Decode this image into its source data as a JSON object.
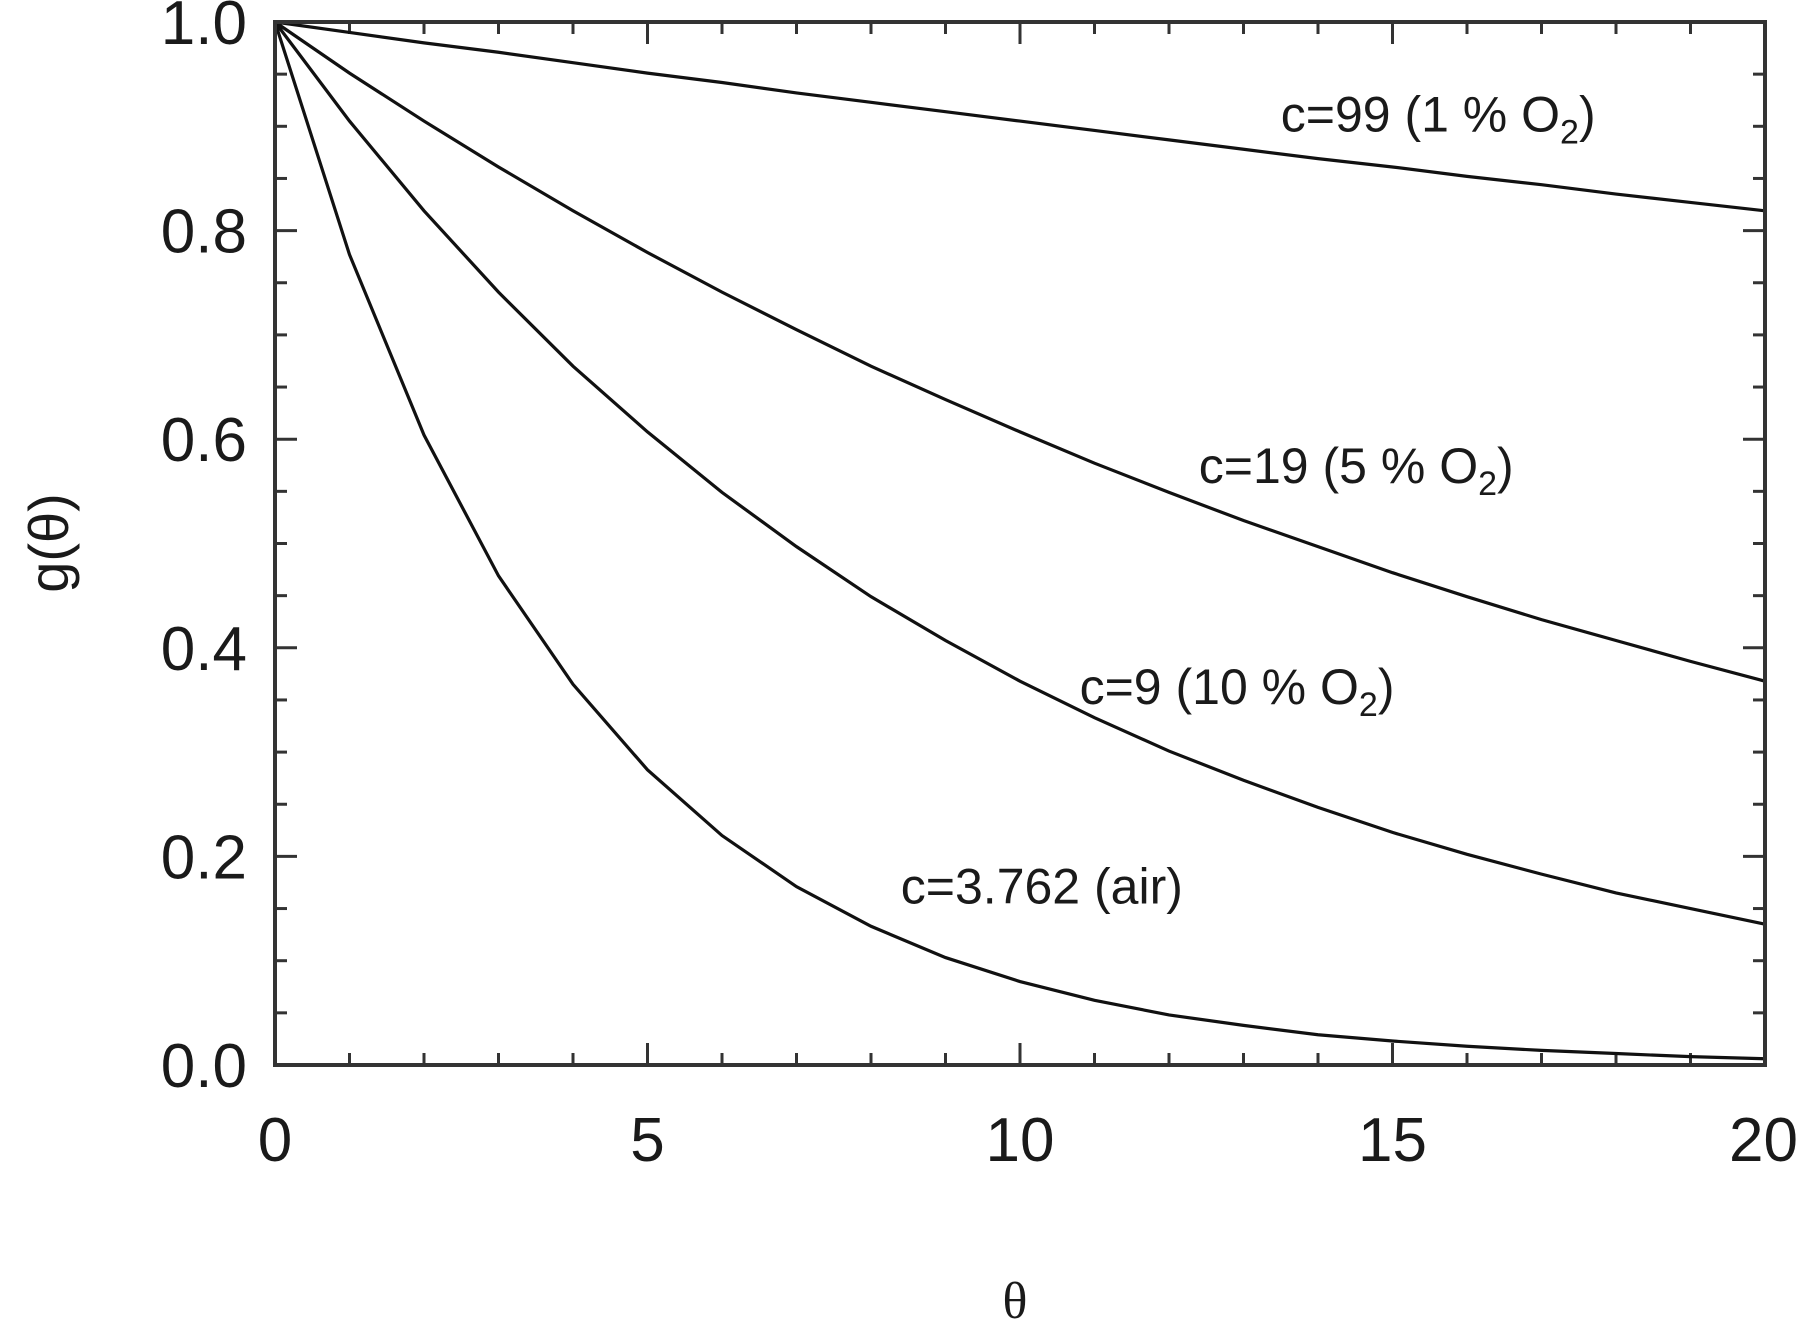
{
  "chart_data": {
    "type": "line",
    "title": "",
    "xlabel": "θ",
    "ylabel": "g(θ)",
    "xlim": [
      0,
      20
    ],
    "ylim": [
      0.0,
      1.0
    ],
    "x_ticks": [
      0,
      5,
      10,
      15,
      20
    ],
    "x_tick_labels": [
      "0",
      "5",
      "10",
      "15",
      "20"
    ],
    "y_ticks": [
      0.0,
      0.2,
      0.4,
      0.6,
      0.8,
      1.0
    ],
    "y_tick_labels": [
      "0.0",
      "0.2",
      "0.4",
      "0.6",
      "0.8",
      "1.0"
    ],
    "grid": false,
    "legend": "none",
    "x": [
      0,
      1,
      2,
      3,
      4,
      5,
      6,
      7,
      8,
      9,
      10,
      11,
      12,
      13,
      14,
      15,
      16,
      17,
      18,
      19,
      20
    ],
    "series": [
      {
        "values": [
          1.0,
          0.99,
          0.98,
          0.971,
          0.961,
          0.951,
          0.942,
          0.932,
          0.923,
          0.914,
          0.905,
          0.896,
          0.887,
          0.878,
          0.869,
          0.861,
          0.852,
          0.844,
          0.835,
          0.827,
          0.819
        ],
        "annotation": "c=99 (1 % O",
        "annotation_sub": "2",
        "annotation_end": ")",
        "annotation_x": 13.5,
        "annotation_y": 0.895
      },
      {
        "values": [
          1.0,
          0.951,
          0.905,
          0.861,
          0.819,
          0.779,
          0.741,
          0.705,
          0.67,
          0.638,
          0.607,
          0.577,
          0.549,
          0.522,
          0.497,
          0.472,
          0.449,
          0.427,
          0.407,
          0.387,
          0.368
        ],
        "annotation": "c=19 (5 % O",
        "annotation_sub": "2",
        "annotation_end": ")",
        "annotation_x": 12.4,
        "annotation_y": 0.558
      },
      {
        "values": [
          1.0,
          0.905,
          0.819,
          0.741,
          0.67,
          0.607,
          0.549,
          0.497,
          0.449,
          0.407,
          0.368,
          0.333,
          0.301,
          0.273,
          0.247,
          0.223,
          0.202,
          0.183,
          0.165,
          0.15,
          0.135
        ],
        "annotation": "c=9 (10 % O",
        "annotation_sub": "2",
        "annotation_end": ")",
        "annotation_x": 10.8,
        "annotation_y": 0.346
      },
      {
        "values": [
          1.0,
          0.777,
          0.604,
          0.469,
          0.365,
          0.283,
          0.22,
          0.171,
          0.133,
          0.103,
          0.08,
          0.062,
          0.048,
          0.038,
          0.029,
          0.023,
          0.018,
          0.014,
          0.011,
          0.008,
          0.006
        ],
        "annotation": "c=3.762 (air)",
        "annotation_sub": "",
        "annotation_end": "",
        "annotation_x": 8.4,
        "annotation_y": 0.155
      }
    ]
  }
}
